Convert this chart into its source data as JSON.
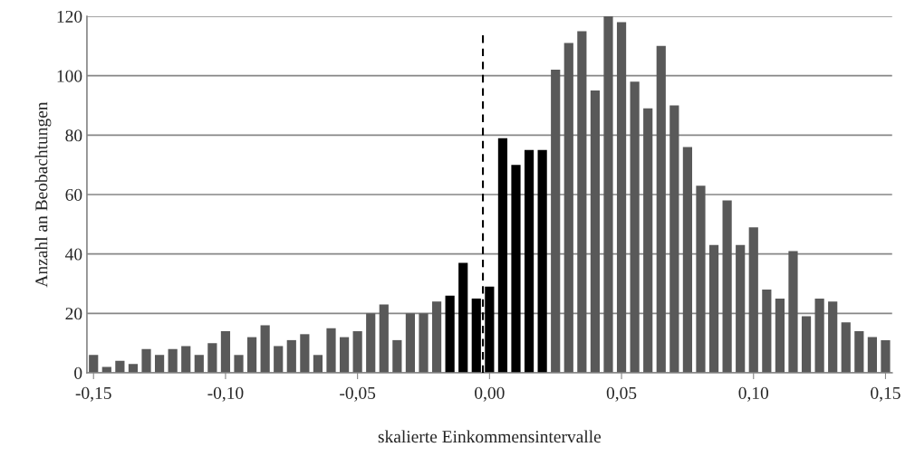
{
  "chart_data": {
    "type": "bar",
    "xlabel": "skalierte Einkommensintervalle",
    "ylabel": "Anzahl an Beobachtungen",
    "x": [
      -0.15,
      -0.145,
      -0.14,
      -0.135,
      -0.13,
      -0.125,
      -0.12,
      -0.115,
      -0.11,
      -0.105,
      -0.1,
      -0.095,
      -0.09,
      -0.085,
      -0.08,
      -0.075,
      -0.07,
      -0.065,
      -0.06,
      -0.055,
      -0.05,
      -0.045,
      -0.04,
      -0.035,
      -0.03,
      -0.025,
      -0.02,
      -0.015,
      -0.01,
      -0.005,
      0,
      0.005,
      0.01,
      0.015,
      0.02,
      0.025,
      0.03,
      0.035,
      0.04,
      0.045,
      0.05,
      0.055,
      0.06,
      0.065,
      0.07,
      0.075,
      0.08,
      0.085,
      0.09,
      0.095,
      0.1,
      0.105,
      0.11,
      0.115,
      0.12,
      0.125,
      0.13,
      0.135,
      0.14,
      0.145,
      0.15
    ],
    "values": [
      6,
      2,
      4,
      3,
      8,
      6,
      8,
      9,
      6,
      10,
      14,
      6,
      12,
      16,
      9,
      11,
      13,
      6,
      15,
      12,
      14,
      20,
      23,
      11,
      20,
      20,
      24,
      26,
      37,
      25,
      29,
      79,
      70,
      75,
      75,
      102,
      111,
      115,
      95,
      120,
      118,
      98,
      89,
      110,
      90,
      76,
      63,
      43,
      58,
      43,
      49,
      28,
      25,
      41,
      19,
      25,
      24,
      17,
      14,
      12,
      11
    ],
    "colors": [
      "#595959",
      "#595959",
      "#595959",
      "#595959",
      "#595959",
      "#595959",
      "#595959",
      "#595959",
      "#595959",
      "#595959",
      "#595959",
      "#595959",
      "#595959",
      "#595959",
      "#595959",
      "#595959",
      "#595959",
      "#595959",
      "#595959",
      "#595959",
      "#595959",
      "#595959",
      "#595959",
      "#595959",
      "#595959",
      "#595959",
      "#595959",
      "#000000",
      "#000000",
      "#000000",
      "#000000",
      "#000000",
      "#000000",
      "#000000",
      "#000000",
      "#595959",
      "#595959",
      "#595959",
      "#595959",
      "#595959",
      "#595959",
      "#595959",
      "#595959",
      "#595959",
      "#595959",
      "#595959",
      "#595959",
      "#595959",
      "#595959",
      "#595959",
      "#595959",
      "#595959",
      "#595959",
      "#595959",
      "#595959",
      "#595959",
      "#595959",
      "#595959",
      "#595959",
      "#595959",
      "#595959"
    ],
    "xlim": [
      -0.1525,
      0.1525
    ],
    "xticks": [
      {
        "value": -0.15,
        "label": "-0,15"
      },
      {
        "value": -0.1,
        "label": "-0,10"
      },
      {
        "value": -0.05,
        "label": "-0,05"
      },
      {
        "value": 0,
        "label": "0,00"
      },
      {
        "value": 0.05,
        "label": "0,05"
      },
      {
        "value": 0.1,
        "label": "0,10"
      },
      {
        "value": 0.15,
        "label": "0,15"
      }
    ],
    "ylim": [
      0,
      120
    ],
    "yticks": [
      0,
      20,
      40,
      60,
      80,
      100,
      120
    ],
    "ref_lines": [
      {
        "axis": "x",
        "value": -0.0025,
        "color": "#000000",
        "line_style": "dashed"
      }
    ],
    "grid": "y",
    "legend": false
  }
}
